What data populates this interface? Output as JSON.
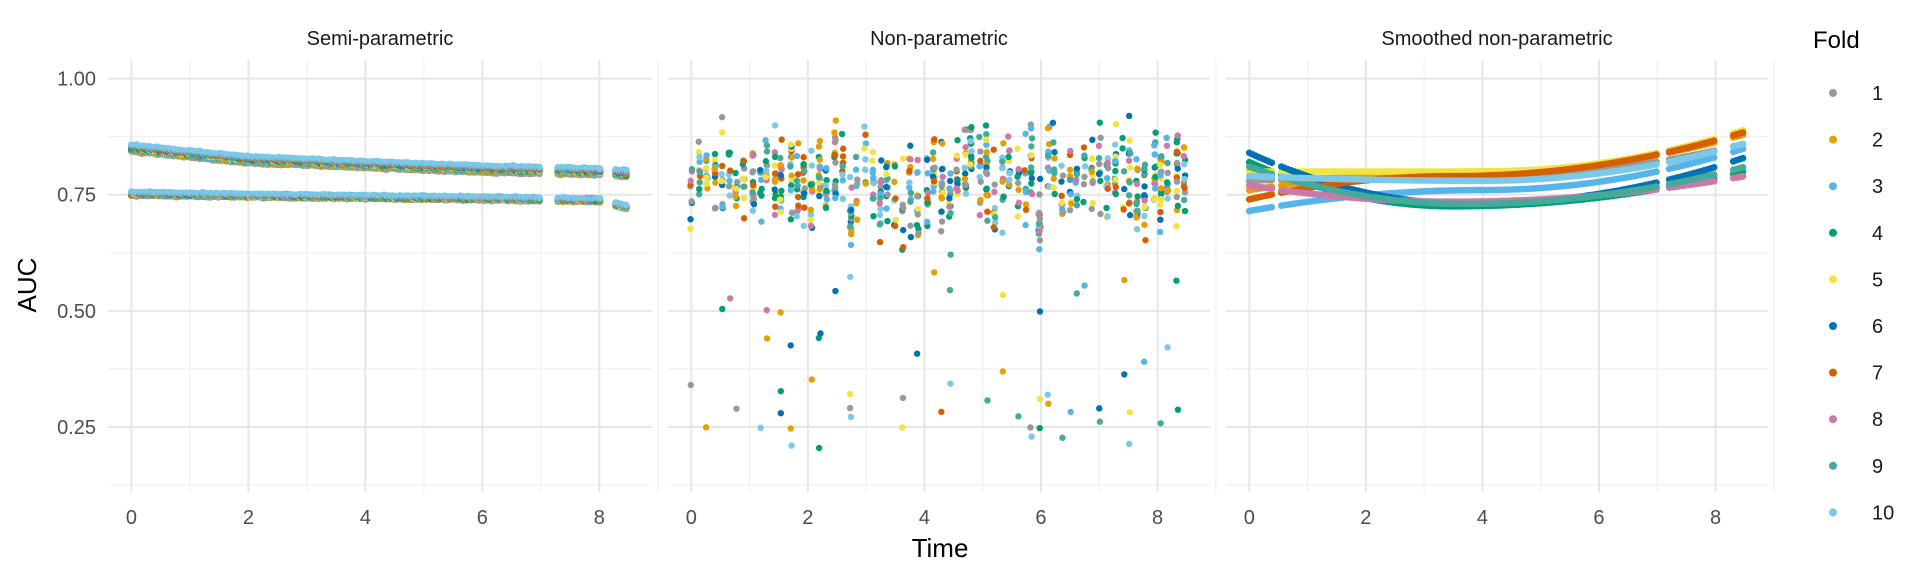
{
  "chart_data": {
    "type": "scatter",
    "ylabel": "AUC",
    "xlabel": "Time",
    "yticks": [
      "0.25",
      "0.50",
      "0.75",
      "1.00"
    ],
    "ytick_values": [
      0.25,
      0.5,
      0.75,
      1.0
    ],
    "xticks": [
      "0",
      "2",
      "4",
      "6",
      "8"
    ],
    "xtick_values": [
      0,
      2,
      4,
      6,
      8
    ],
    "xlim": [
      -0.4,
      8.9
    ],
    "ylim": [
      0.11,
      1.04
    ],
    "grid": true,
    "legend": {
      "title": "Fold",
      "position": "right",
      "items": [
        {
          "label": "1",
          "color": "#999999"
        },
        {
          "label": "2",
          "color": "#E69F00"
        },
        {
          "label": "3",
          "color": "#56B4E9"
        },
        {
          "label": "4",
          "color": "#009E73"
        },
        {
          "label": "5",
          "color": "#F0E442"
        },
        {
          "label": "6",
          "color": "#0072B2"
        },
        {
          "label": "7",
          "color": "#D55E00"
        },
        {
          "label": "8",
          "color": "#CC79A7"
        },
        {
          "label": "9",
          "color": "#44AA99"
        },
        {
          "label": "10",
          "color": "#7BC8E8"
        }
      ]
    },
    "panels": [
      {
        "title": "Semi-parametric",
        "type": "band",
        "x_range": [
          0,
          8.5
        ],
        "bands": [
          {
            "x": [
              0,
              2,
              4,
              6,
              8,
              8.5
            ],
            "y": [
              0.85,
              0.825,
              0.815,
              0.805,
              0.8,
              0.795
            ],
            "spread": 0.012
          },
          {
            "x": [
              0,
              2,
              4,
              6,
              8,
              8.5
            ],
            "y": [
              0.752,
              0.748,
              0.745,
              0.742,
              0.738,
              0.722
            ],
            "spread": 0.006
          }
        ]
      },
      {
        "title": "Non-parametric",
        "type": "scatter",
        "x_range": [
          0,
          8.5
        ],
        "y_center": 0.8,
        "y_min": 0.14,
        "y_max": 1.0
      },
      {
        "title": "Smoothed non-parametric",
        "type": "curves",
        "x_range": [
          0,
          8.5
        ],
        "curves": [
          {
            "fold": "1",
            "y0": 0.78,
            "ymid": 0.79,
            "y1": 0.86,
            "tmid": 4
          },
          {
            "fold": "2",
            "y0": 0.76,
            "ymid": 0.8,
            "y1": 0.88,
            "tmid": 4
          },
          {
            "fold": "3",
            "y0": 0.715,
            "ymid": 0.76,
            "y1": 0.85,
            "tmid": 4
          },
          {
            "fold": "4",
            "y0": 0.82,
            "ymid": 0.725,
            "y1": 0.8,
            "tmid": 3.5
          },
          {
            "fold": "5",
            "y0": 0.8,
            "ymid": 0.8,
            "y1": 0.89,
            "tmid": 4
          },
          {
            "fold": "6",
            "y0": 0.84,
            "ymid": 0.73,
            "y1": 0.83,
            "tmid": 3.8
          },
          {
            "fold": "7",
            "y0": 0.74,
            "ymid": 0.79,
            "y1": 0.885,
            "tmid": 3.5
          },
          {
            "fold": "8",
            "y0": 0.77,
            "ymid": 0.735,
            "y1": 0.79,
            "tmid": 3.5
          },
          {
            "fold": "9",
            "y0": 0.81,
            "ymid": 0.73,
            "y1": 0.81,
            "tmid": 3.7
          },
          {
            "fold": "10",
            "y0": 0.79,
            "ymid": 0.78,
            "y1": 0.86,
            "tmid": 4
          }
        ]
      }
    ]
  }
}
